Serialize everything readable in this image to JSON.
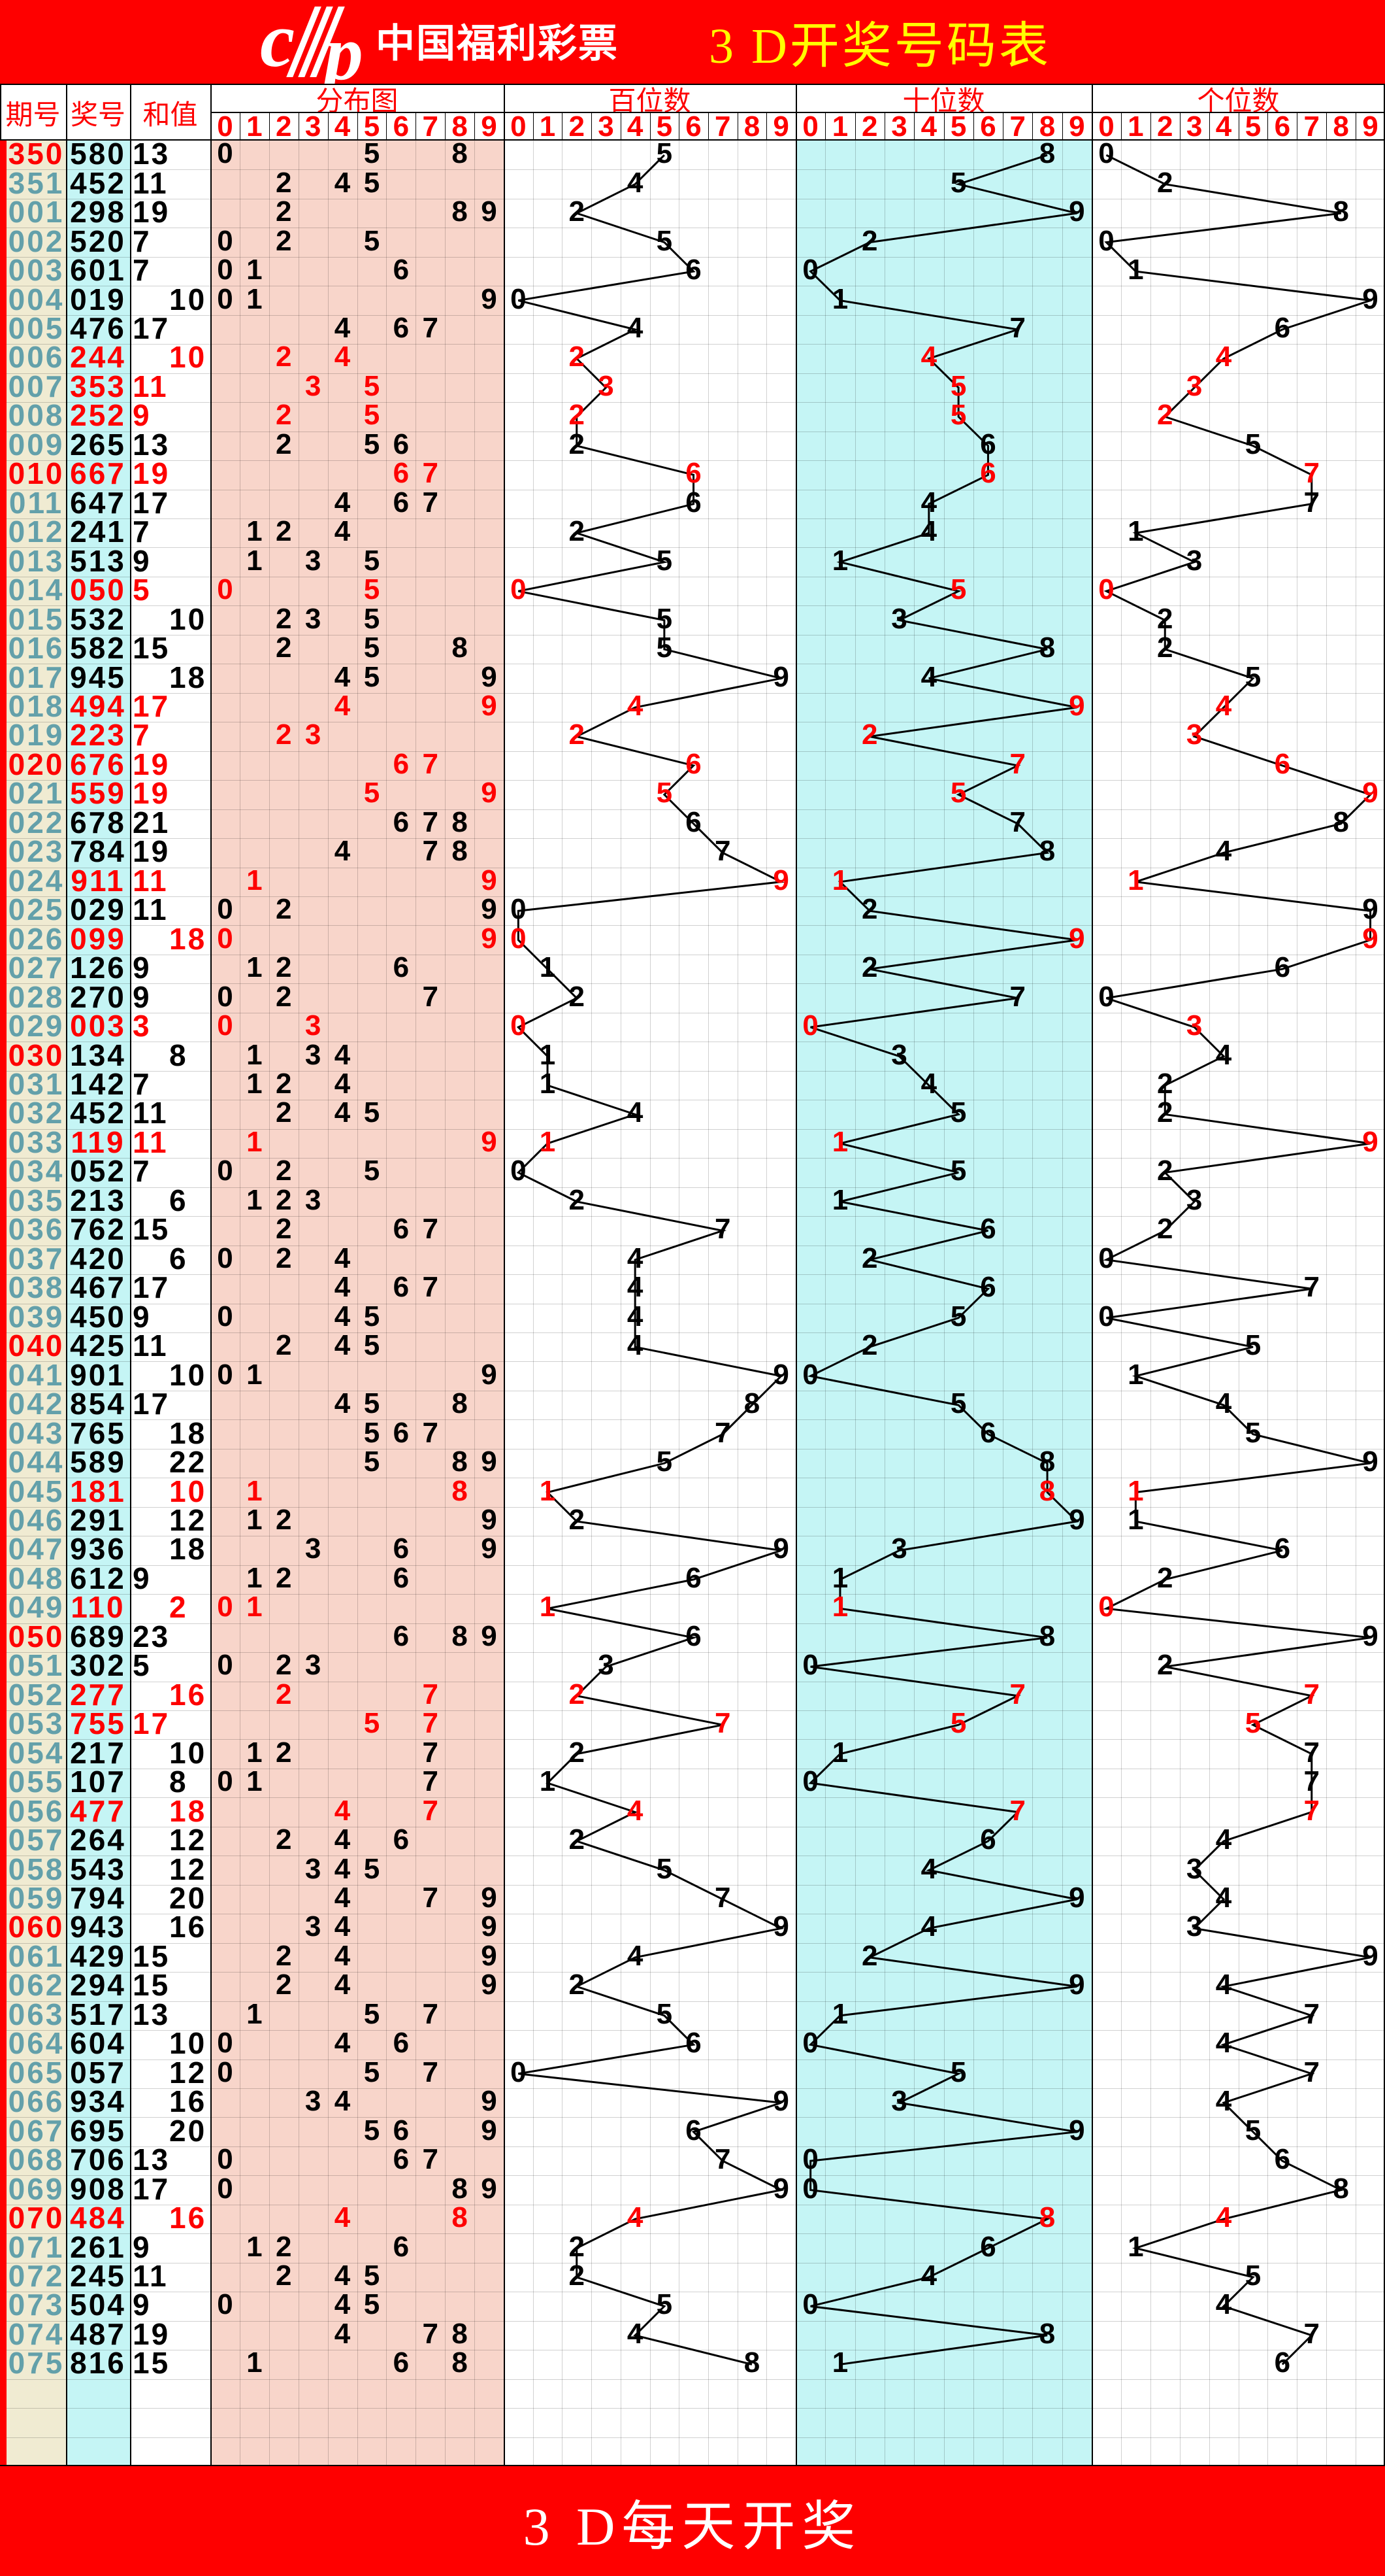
{
  "header": {
    "brand": "中国福利彩票",
    "title": "3 D开奖号码表",
    "logo_letters": [
      "c",
      "p"
    ]
  },
  "table_labels": {
    "col_period": "期号",
    "col_number": "奖号",
    "col_sum": "和值",
    "group_distribution": "分布图",
    "group_hundreds": "百位数",
    "group_tens": "十位数",
    "group_units": "个位数",
    "digit_header": [
      "0",
      "1",
      "2",
      "3",
      "4",
      "5",
      "6",
      "7",
      "8",
      "9"
    ]
  },
  "footer": {
    "text": "3 D每天开奖"
  },
  "colors": {
    "red": "#fe0000",
    "yellow": "#ffff00",
    "white": "#ffffff",
    "black": "#000000",
    "period_teal": "#63a0aa",
    "period_bg_beige": "#f0ebd2",
    "number_bg_cyan": "#c5f5f5",
    "distribution_bg_pink": "#f8d5ca",
    "tens_bg_cyan": "#c5f5f5",
    "gridline": "rgba(0,0,0,0.18)"
  },
  "chart_data": {
    "type": "line",
    "title": "3 D开奖号码表",
    "description": "Each row: lottery period, 3-digit winning number, digit sum. Distribution panel plots the unique digits of the number at columns 0-9. The hundreds/tens/units panels plot that place's digit at columns 0-9 connected by a line across rows. Numbers with a repeated digit are drawn red; periods ending in 0 are red; even sums are indented to the right half of the sum column.",
    "columns": [
      "期号",
      "奖号",
      "和值"
    ],
    "groups": [
      "分布图",
      "百位数",
      "十位数",
      "个位数"
    ],
    "x_range": [
      0,
      9
    ],
    "rows": [
      {
        "p": "350",
        "n": "580",
        "s": 13
      },
      {
        "p": "351",
        "n": "452",
        "s": 11
      },
      {
        "p": "001",
        "n": "298",
        "s": 19
      },
      {
        "p": "002",
        "n": "520",
        "s": 7
      },
      {
        "p": "003",
        "n": "601",
        "s": 7
      },
      {
        "p": "004",
        "n": "019",
        "s": 10
      },
      {
        "p": "005",
        "n": "476",
        "s": 17
      },
      {
        "p": "006",
        "n": "244",
        "s": 10
      },
      {
        "p": "007",
        "n": "353",
        "s": 11
      },
      {
        "p": "008",
        "n": "252",
        "s": 9
      },
      {
        "p": "009",
        "n": "265",
        "s": 13
      },
      {
        "p": "010",
        "n": "667",
        "s": 19
      },
      {
        "p": "011",
        "n": "647",
        "s": 17
      },
      {
        "p": "012",
        "n": "241",
        "s": 7
      },
      {
        "p": "013",
        "n": "513",
        "s": 9
      },
      {
        "p": "014",
        "n": "050",
        "s": 5
      },
      {
        "p": "015",
        "n": "532",
        "s": 10
      },
      {
        "p": "016",
        "n": "582",
        "s": 15
      },
      {
        "p": "017",
        "n": "945",
        "s": 18
      },
      {
        "p": "018",
        "n": "494",
        "s": 17
      },
      {
        "p": "019",
        "n": "223",
        "s": 7
      },
      {
        "p": "020",
        "n": "676",
        "s": 19
      },
      {
        "p": "021",
        "n": "559",
        "s": 19
      },
      {
        "p": "022",
        "n": "678",
        "s": 21
      },
      {
        "p": "023",
        "n": "784",
        "s": 19
      },
      {
        "p": "024",
        "n": "911",
        "s": 11
      },
      {
        "p": "025",
        "n": "029",
        "s": 11
      },
      {
        "p": "026",
        "n": "099",
        "s": 18
      },
      {
        "p": "027",
        "n": "126",
        "s": 9
      },
      {
        "p": "028",
        "n": "270",
        "s": 9
      },
      {
        "p": "029",
        "n": "003",
        "s": 3
      },
      {
        "p": "030",
        "n": "134",
        "s": 8
      },
      {
        "p": "031",
        "n": "142",
        "s": 7
      },
      {
        "p": "032",
        "n": "452",
        "s": 11
      },
      {
        "p": "033",
        "n": "119",
        "s": 11
      },
      {
        "p": "034",
        "n": "052",
        "s": 7
      },
      {
        "p": "035",
        "n": "213",
        "s": 6
      },
      {
        "p": "036",
        "n": "762",
        "s": 15
      },
      {
        "p": "037",
        "n": "420",
        "s": 6
      },
      {
        "p": "038",
        "n": "467",
        "s": 17
      },
      {
        "p": "039",
        "n": "450",
        "s": 9
      },
      {
        "p": "040",
        "n": "425",
        "s": 11
      },
      {
        "p": "041",
        "n": "901",
        "s": 10
      },
      {
        "p": "042",
        "n": "854",
        "s": 17
      },
      {
        "p": "043",
        "n": "765",
        "s": 18
      },
      {
        "p": "044",
        "n": "589",
        "s": 22
      },
      {
        "p": "045",
        "n": "181",
        "s": 10
      },
      {
        "p": "046",
        "n": "291",
        "s": 12
      },
      {
        "p": "047",
        "n": "936",
        "s": 18
      },
      {
        "p": "048",
        "n": "612",
        "s": 9
      },
      {
        "p": "049",
        "n": "110",
        "s": 2
      },
      {
        "p": "050",
        "n": "689",
        "s": 23
      },
      {
        "p": "051",
        "n": "302",
        "s": 5
      },
      {
        "p": "052",
        "n": "277",
        "s": 16
      },
      {
        "p": "053",
        "n": "755",
        "s": 17
      },
      {
        "p": "054",
        "n": "217",
        "s": 10
      },
      {
        "p": "055",
        "n": "107",
        "s": 8
      },
      {
        "p": "056",
        "n": "477",
        "s": 18
      },
      {
        "p": "057",
        "n": "264",
        "s": 12
      },
      {
        "p": "058",
        "n": "543",
        "s": 12
      },
      {
        "p": "059",
        "n": "794",
        "s": 20
      },
      {
        "p": "060",
        "n": "943",
        "s": 16
      },
      {
        "p": "061",
        "n": "429",
        "s": 15
      },
      {
        "p": "062",
        "n": "294",
        "s": 15
      },
      {
        "p": "063",
        "n": "517",
        "s": 13
      },
      {
        "p": "064",
        "n": "604",
        "s": 10
      },
      {
        "p": "065",
        "n": "057",
        "s": 12
      },
      {
        "p": "066",
        "n": "934",
        "s": 16
      },
      {
        "p": "067",
        "n": "695",
        "s": 20
      },
      {
        "p": "068",
        "n": "706",
        "s": 13
      },
      {
        "p": "069",
        "n": "908",
        "s": 17
      },
      {
        "p": "070",
        "n": "484",
        "s": 16
      },
      {
        "p": "071",
        "n": "261",
        "s": 9
      },
      {
        "p": "072",
        "n": "245",
        "s": 11
      },
      {
        "p": "073",
        "n": "504",
        "s": 9
      },
      {
        "p": "074",
        "n": "487",
        "s": 19
      },
      {
        "p": "075",
        "n": "816",
        "s": 15
      }
    ]
  }
}
